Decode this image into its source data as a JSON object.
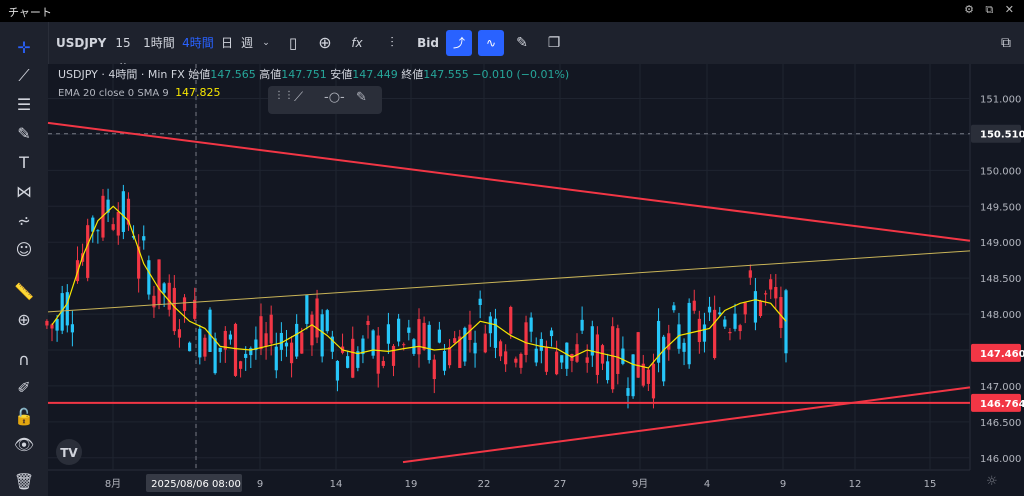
{
  "window": {
    "title": "チャート",
    "icons": "⚙ ⧉ ✕"
  },
  "toolbar": {
    "symbol": "USDJPY",
    "intervals": [
      "15分",
      "1時間",
      "4時間",
      "日",
      "週"
    ],
    "active_interval": "4時間",
    "price_source": "Bid",
    "icons": [
      "candles-icon",
      "add-icon",
      "indicators-icon",
      "compare-icon",
      "line-icon",
      "pulse-icon",
      "brush-icon",
      "layout-icon",
      "fullscreen-icon"
    ]
  },
  "sidebar": {
    "icons": [
      "crosshair-icon",
      "trendline-icon",
      "fib-icon",
      "brush-icon",
      "text-icon",
      "pattern-icon",
      "prediction-icon",
      "emoji-icon",
      "ruler-icon",
      "zoom-icon",
      "magnet-icon",
      "lock-draw-icon",
      "lock-icon",
      "eye-icon",
      "trash-icon"
    ]
  },
  "legend": {
    "symbol": "USDJPY",
    "interval": "4時間",
    "source": "Min FX",
    "open_label": "始値",
    "open": "147.565",
    "high_label": "高値",
    "high": "147.751",
    "low_label": "安値",
    "low": "147.449",
    "close_label": "終値",
    "close": "147.555",
    "change": "−0.010 (−0.01%)"
  },
  "ema": {
    "label": "EMA 20 close 0 SMA 9",
    "value": "147.825"
  },
  "chart_data": {
    "type": "candlestick",
    "ylim": [
      145.83,
      151.48
    ],
    "y_ticks": [
      "151.000",
      "150.500",
      "150.000",
      "149.500",
      "149.000",
      "148.500",
      "148.000",
      "147.500",
      "147.000",
      "146.500",
      "146.000"
    ],
    "x_ticks": [
      "8月",
      "2025/08/06 08:00",
      "9",
      "14",
      "19",
      "22",
      "27",
      "9月",
      "4",
      "9",
      "12",
      "15"
    ],
    "price_labels": [
      {
        "value": "150.510",
        "color": "#2a2e39"
      },
      {
        "value": "147.460",
        "color": "#f23645"
      },
      {
        "value": "146.764",
        "color": "#f23645"
      }
    ],
    "colors": {
      "up": "#f23645",
      "down": "#26c6f9",
      "ema": "#f7e600",
      "lines": "#f23645",
      "grid": "#1f2430"
    },
    "drawings": [
      "upper-resistance-trendline",
      "lower-support-trendline",
      "horizontal-support-146.764",
      "midline-trendline"
    ],
    "ema_values": [
      147.85,
      148.15,
      148.8,
      149.3,
      149.5,
      149.3,
      148.7,
      148.35,
      148.1,
      147.9,
      147.8,
      147.55,
      147.52,
      147.5,
      147.55,
      147.6,
      147.72,
      147.85,
      147.7,
      147.5,
      147.45,
      147.5,
      147.48,
      147.52,
      147.55,
      147.5,
      147.52,
      147.7,
      147.9,
      147.85,
      147.7,
      147.6,
      147.55,
      147.52,
      147.4,
      147.5,
      147.45,
      147.4,
      147.3,
      147.25,
      147.5,
      147.7,
      147.75,
      147.8,
      148.05,
      148.15,
      148.2,
      148.15,
      147.9
    ]
  }
}
